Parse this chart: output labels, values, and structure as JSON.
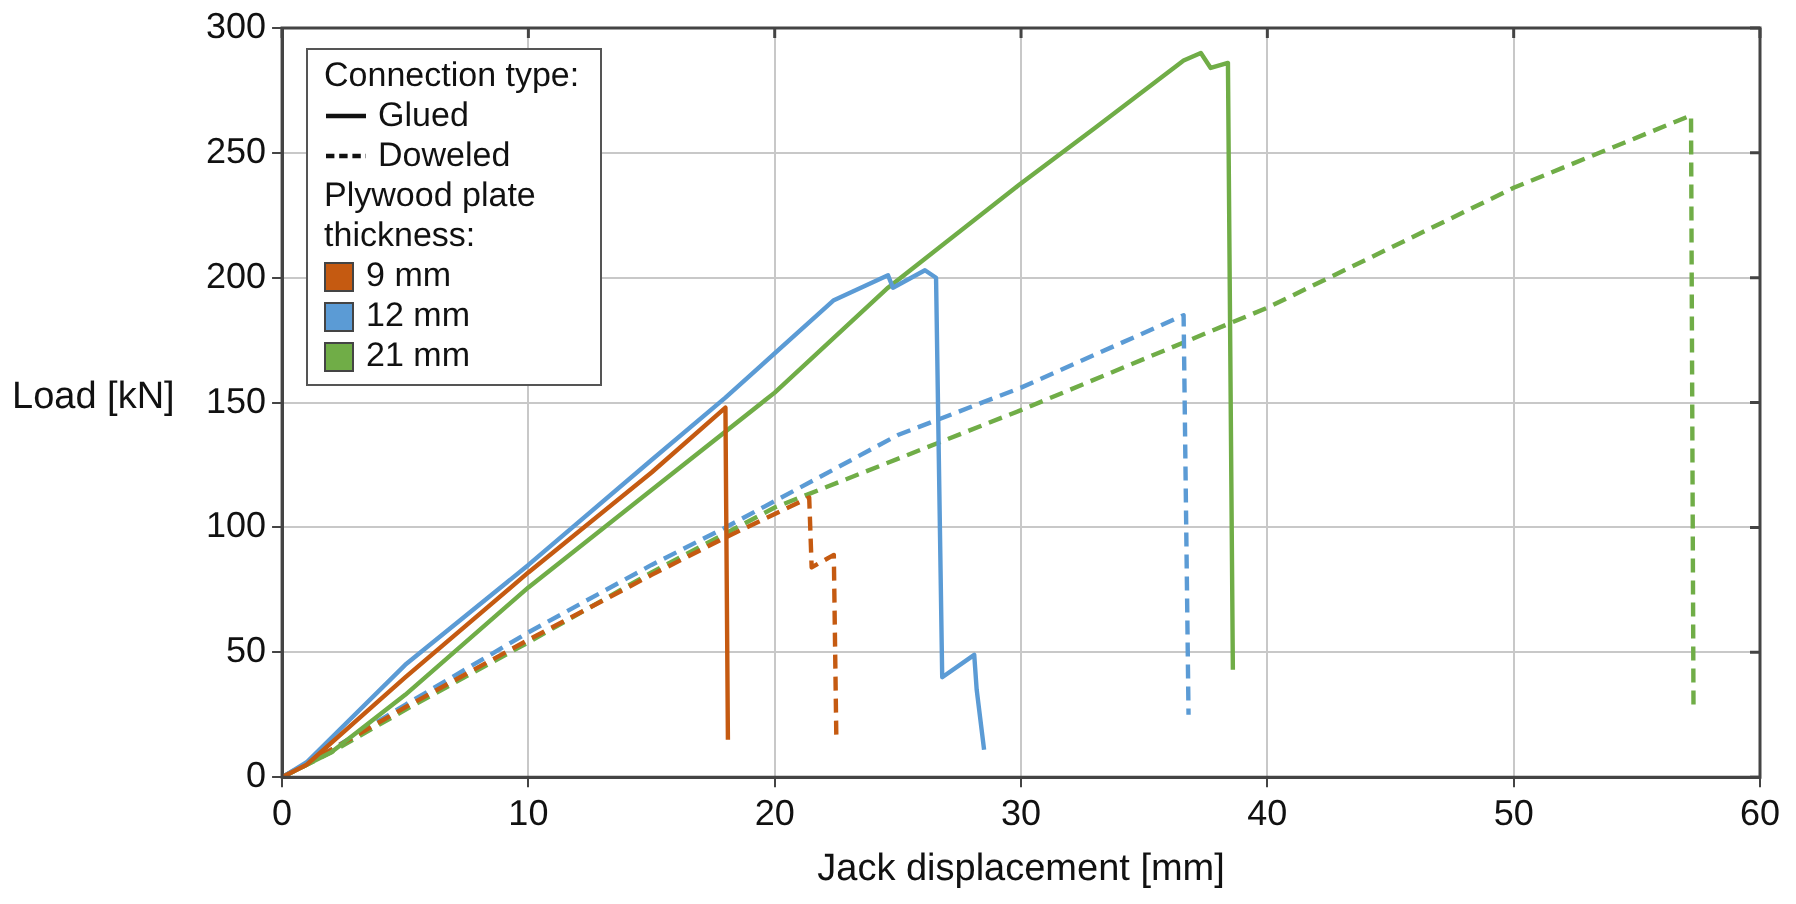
{
  "chart_data": {
    "type": "line",
    "xlabel": "Jack displacement [mm]",
    "ylabel": "Load [kN]",
    "legend_title": "Connection type:",
    "annotations": [
      "Glued",
      "Doweled",
      "Plywood plate thickness:"
    ],
    "xlim": [
      0,
      60
    ],
    "xticks": [
      0,
      10,
      20,
      30,
      40,
      50,
      60
    ],
    "ylim": [
      0,
      300
    ],
    "yticks": [
      0,
      50,
      100,
      150,
      200,
      250,
      300
    ],
    "grid": true,
    "legend": "top left",
    "marker": "none",
    "series": [
      {
        "name": "9 mm",
        "color": "#c55a11",
        "line_style": "solid",
        "x": [
          0,
          1,
          5,
          10,
          15,
          18,
          18.1
        ],
        "values": [
          0,
          5,
          40,
          82,
          122,
          148,
          15
        ]
      },
      {
        "name": "12 mm",
        "color": "#5b9bd5",
        "line_style": "solid",
        "x": [
          0,
          1,
          5,
          10,
          15,
          18,
          22.4,
          24.6,
          24.8,
          26.1,
          26.55,
          26.8,
          28.1,
          28.2,
          28.5
        ],
        "values": [
          0,
          6,
          45,
          85,
          127,
          152,
          191,
          201,
          196,
          203,
          200,
          40,
          49,
          35,
          11
        ]
      },
      {
        "name": "21 mm",
        "color": "#70ad47",
        "line_style": "solid",
        "x": [
          0,
          2,
          5,
          10,
          15,
          20,
          24.6,
          29.9,
          33,
          36.6,
          37.3,
          37.7,
          38.4,
          38.6
        ],
        "values": [
          0,
          10,
          33,
          76,
          115,
          154,
          196,
          237,
          260,
          287,
          290,
          284,
          286,
          43
        ]
      },
      {
        "color": "#c55a11",
        "line_style": "dashed",
        "x": [
          0,
          2,
          5,
          10,
          15,
          18,
          21.4,
          21.5,
          22.4,
          22.5
        ],
        "values": [
          0,
          11,
          28,
          55,
          81,
          96,
          112,
          84,
          89,
          17
        ]
      },
      {
        "color": "#5b9bd5",
        "line_style": "dashed",
        "x": [
          0,
          2,
          5,
          10,
          15,
          18,
          25,
          30,
          36.6,
          36.8
        ],
        "values": [
          0,
          11,
          29,
          58,
          85,
          100,
          137,
          156,
          185,
          25
        ]
      },
      {
        "color": "#70ad47",
        "line_style": "dashed",
        "x": [
          0,
          2,
          5,
          10,
          15,
          20,
          30,
          40,
          50,
          57.2,
          57.3
        ],
        "values": [
          0,
          10,
          27,
          54,
          82,
          108,
          147,
          188,
          236,
          265,
          29
        ]
      }
    ]
  }
}
